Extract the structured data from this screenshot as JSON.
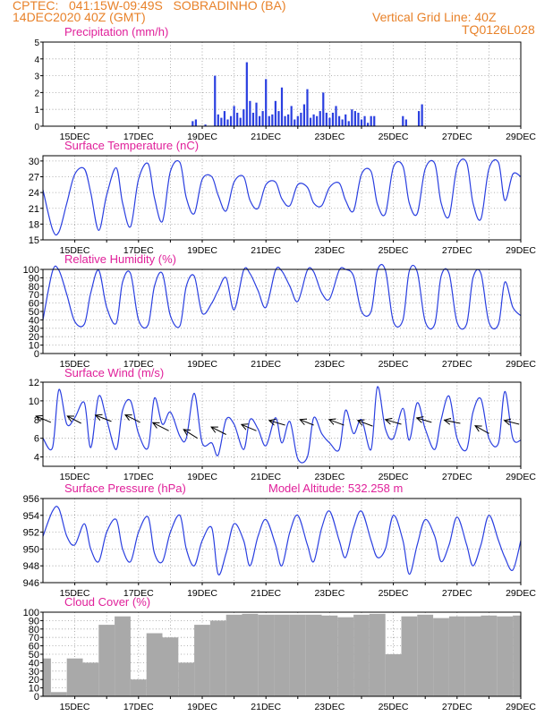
{
  "header": {
    "line1": "CPTEC:   041:15W-09:49S   SOBRADINHO (BA)",
    "line2": "14DEC2020 40Z (GMT)",
    "right1": "Vertical Grid Line: 40Z",
    "right2": "TQ0126L028"
  },
  "colors": {
    "header": "#e8822a",
    "title": "#e0209a",
    "line": "#2a3fe0",
    "bar": "#2a3fe0",
    "cloud": "#a9a9a9",
    "grid": "#9a9a9a"
  },
  "x_axis": {
    "start_day": 14,
    "end_day": 29,
    "tick_labels": [
      "15DEC",
      "17DEC",
      "19DEC",
      "21DEC",
      "23DEC",
      "25DEC",
      "27DEC",
      "29DEC"
    ]
  },
  "model_altitude": "Model Altitude: 532.258  m",
  "chart_data": [
    {
      "type": "bar",
      "title": "Precipitation (mm/h)",
      "ylim": [
        0,
        5
      ],
      "yticks": [
        "0",
        "1",
        "2",
        "3",
        "4",
        "5"
      ],
      "x": [
        18.7,
        18.8,
        19.1,
        19.4,
        19.5,
        19.6,
        19.7,
        19.8,
        19.9,
        20.0,
        20.1,
        20.2,
        20.3,
        20.4,
        20.5,
        20.6,
        20.7,
        20.8,
        20.9,
        21.0,
        21.1,
        21.2,
        21.3,
        21.4,
        21.5,
        21.6,
        21.7,
        21.8,
        21.9,
        22.0,
        22.1,
        22.2,
        22.3,
        22.4,
        22.5,
        22.6,
        22.7,
        22.8,
        22.9,
        23.0,
        23.1,
        23.2,
        23.3,
        23.4,
        23.5,
        23.6,
        23.7,
        23.8,
        23.9,
        24.0,
        24.1,
        24.2,
        24.3,
        24.4,
        25.3,
        25.4,
        25.8,
        25.9
      ],
      "values": [
        0.3,
        0.4,
        0.1,
        3.0,
        0.7,
        0.5,
        0.9,
        0.4,
        0.6,
        1.2,
        0.8,
        0.5,
        1.0,
        3.8,
        1.5,
        0.8,
        1.4,
        0.6,
        0.9,
        2.8,
        0.6,
        0.7,
        1.5,
        0.9,
        2.3,
        0.6,
        0.7,
        1.2,
        0.4,
        0.6,
        0.8,
        1.3,
        2.2,
        0.5,
        0.7,
        0.6,
        0.9,
        2.0,
        0.8,
        0.5,
        0.8,
        1.2,
        0.6,
        0.4,
        0.7,
        0.3,
        1.0,
        0.9,
        0.8,
        0.4,
        0.6,
        0.2,
        0.6,
        0.6,
        0.6,
        0.4,
        0.9,
        1.3
      ]
    },
    {
      "type": "line",
      "title": "Surface Temperature (nC)",
      "ylim": [
        15,
        31
      ],
      "yticks": [
        "15",
        "18",
        "21",
        "24",
        "27",
        "30"
      ],
      "x": [
        14.0,
        14.3,
        14.5,
        14.75,
        15.0,
        15.3,
        15.5,
        15.75,
        16.0,
        16.3,
        16.5,
        16.75,
        17.0,
        17.3,
        17.5,
        17.75,
        18.0,
        18.3,
        18.5,
        18.75,
        19.0,
        19.3,
        19.5,
        19.75,
        20.0,
        20.3,
        20.5,
        20.75,
        21.0,
        21.3,
        21.5,
        21.75,
        22.0,
        22.3,
        22.5,
        22.75,
        23.0,
        23.3,
        23.5,
        23.75,
        24.0,
        24.3,
        24.5,
        24.75,
        25.0,
        25.3,
        25.5,
        25.75,
        26.0,
        26.3,
        26.5,
        26.75,
        27.0,
        27.3,
        27.5,
        27.75,
        28.0,
        28.3,
        28.5,
        28.75,
        29.0
      ],
      "values": [
        24.5,
        17.0,
        16.5,
        22.0,
        27.5,
        28.5,
        24.0,
        16.8,
        23.5,
        28.7,
        22.0,
        17.5,
        26.5,
        29.5,
        23.0,
        18.5,
        28.0,
        29.7,
        23.0,
        20.0,
        26.5,
        27.0,
        23.5,
        20.5,
        26.0,
        27.0,
        22.5,
        21.0,
        25.5,
        26.0,
        22.8,
        21.5,
        25.5,
        25.0,
        22.0,
        21.5,
        25.0,
        25.8,
        22.5,
        20.5,
        27.5,
        28.0,
        21.8,
        20.0,
        28.8,
        29.0,
        22.0,
        20.0,
        28.5,
        29.5,
        22.0,
        19.5,
        28.8,
        29.7,
        22.0,
        19.0,
        28.5,
        29.7,
        22.5,
        27.5,
        27.0
      ]
    },
    {
      "type": "line",
      "title": "Relative Humidity (%)",
      "ylim": [
        0,
        100
      ],
      "yticks": [
        "0",
        "10",
        "20",
        "30",
        "40",
        "50",
        "60",
        "70",
        "80",
        "90",
        "100"
      ],
      "x": [
        14.0,
        14.3,
        14.5,
        14.75,
        15.0,
        15.3,
        15.5,
        15.75,
        16.0,
        16.3,
        16.5,
        16.75,
        17.0,
        17.3,
        17.5,
        17.75,
        18.0,
        18.3,
        18.5,
        18.75,
        19.0,
        19.3,
        19.5,
        19.75,
        20.0,
        20.3,
        20.5,
        20.75,
        21.0,
        21.3,
        21.5,
        21.75,
        22.0,
        22.3,
        22.5,
        22.75,
        23.0,
        23.3,
        23.5,
        23.75,
        24.0,
        24.3,
        24.5,
        24.75,
        25.0,
        25.3,
        25.5,
        25.75,
        26.0,
        26.3,
        26.5,
        26.75,
        27.0,
        27.3,
        27.5,
        27.75,
        28.0,
        28.3,
        28.5,
        28.75,
        29.0
      ],
      "values": [
        40,
        98,
        99,
        70,
        38,
        35,
        72,
        99,
        55,
        36,
        85,
        95,
        40,
        34,
        80,
        95,
        45,
        33,
        80,
        92,
        48,
        60,
        75,
        90,
        52,
        99,
        95,
        75,
        55,
        99,
        98,
        80,
        62,
        99,
        97,
        72,
        65,
        99,
        100,
        92,
        50,
        50,
        99,
        99,
        38,
        40,
        98,
        97,
        38,
        35,
        92,
        95,
        37,
        35,
        90,
        95,
        37,
        35,
        85,
        55,
        45
      ]
    },
    {
      "type": "line",
      "title": "Surface Wind (m/s)",
      "ylim": [
        3,
        12
      ],
      "yticks": [
        "4",
        "6",
        "8",
        "10",
        "12"
      ],
      "x": [
        14.0,
        14.3,
        14.5,
        14.75,
        15.0,
        15.3,
        15.5,
        15.75,
        16.0,
        16.3,
        16.5,
        16.75,
        17.0,
        17.3,
        17.5,
        17.75,
        18.0,
        18.3,
        18.5,
        18.75,
        19.0,
        19.3,
        19.5,
        19.75,
        20.0,
        20.3,
        20.5,
        20.75,
        21.0,
        21.3,
        21.5,
        21.75,
        22.0,
        22.3,
        22.5,
        22.75,
        23.0,
        23.3,
        23.5,
        23.75,
        24.0,
        24.3,
        24.5,
        24.75,
        25.0,
        25.3,
        25.5,
        25.75,
        26.0,
        26.3,
        26.5,
        26.75,
        27.0,
        27.3,
        27.5,
        27.75,
        28.0,
        28.3,
        28.5,
        28.75,
        29.0
      ],
      "values": [
        6.0,
        5.0,
        11.2,
        7.5,
        8.2,
        9.8,
        5.0,
        10.5,
        8.0,
        4.8,
        9.0,
        10.0,
        6.5,
        5.0,
        10.3,
        7.5,
        8.8,
        6.2,
        6.0,
        10.8,
        5.5,
        5.5,
        4.2,
        8.0,
        7.5,
        4.8,
        8.0,
        7.0,
        5.2,
        8.2,
        5.5,
        7.8,
        3.8,
        4.0,
        8.2,
        6.5,
        5.5,
        4.8,
        9.0,
        6.5,
        8.0,
        4.8,
        11.5,
        7.0,
        6.0,
        9.2,
        5.8,
        9.8,
        7.0,
        4.8,
        8.0,
        10.5,
        6.0,
        4.8,
        8.8,
        10.2,
        6.0,
        5.5,
        11.0,
        6.0,
        5.8
      ],
      "vector_x": [
        14.25,
        15.2,
        16.15,
        17.05,
        17.95,
        18.85,
        19.75,
        20.7,
        21.6,
        22.5,
        23.45,
        24.35,
        25.25,
        26.2,
        27.1,
        28.0,
        28.95
      ],
      "vector_y": [
        7.7,
        7.6,
        7.8,
        7.7,
        6.8,
        6.0,
        6.4,
        6.8,
        7.4,
        7.4,
        7.4,
        7.3,
        7.5,
        7.7,
        7.6,
        6.5,
        7.5
      ],
      "vector_dx": [
        -14,
        -13,
        -15,
        -14,
        -15,
        -13,
        -14,
        -14,
        -15,
        -13,
        -14,
        -14,
        -15,
        -14,
        -15,
        -13,
        -14
      ],
      "vector_dy": [
        2.0,
        2.3,
        2.0,
        2.4,
        2.6,
        2.8,
        2.4,
        2.0,
        1.5,
        1.8,
        1.8,
        1.8,
        1.5,
        1.4,
        1.0,
        2.5,
        1.2
      ]
    },
    {
      "type": "line",
      "title": "Surface Pressure (hPa)",
      "ylim": [
        946,
        956
      ],
      "yticks": [
        "946",
        "948",
        "950",
        "952",
        "954",
        "956"
      ],
      "x": [
        14.0,
        14.3,
        14.5,
        14.75,
        15.0,
        15.3,
        15.5,
        15.75,
        16.0,
        16.3,
        16.5,
        16.75,
        17.0,
        17.3,
        17.5,
        17.75,
        18.0,
        18.3,
        18.5,
        18.75,
        19.0,
        19.3,
        19.5,
        19.75,
        20.0,
        20.3,
        20.5,
        20.75,
        21.0,
        21.3,
        21.5,
        21.75,
        22.0,
        22.3,
        22.5,
        22.75,
        23.0,
        23.3,
        23.5,
        23.75,
        24.0,
        24.3,
        24.5,
        24.75,
        25.0,
        25.3,
        25.5,
        25.75,
        26.0,
        26.3,
        26.5,
        26.75,
        27.0,
        27.3,
        27.5,
        27.75,
        28.0,
        28.3,
        28.5,
        28.75,
        29.0
      ],
      "values": [
        951.5,
        954.5,
        954.8,
        951.5,
        950.5,
        953.0,
        950.0,
        948.5,
        952.0,
        953.5,
        950.0,
        948.5,
        952.0,
        953.8,
        949.5,
        948.5,
        952.0,
        954.0,
        950.0,
        948.0,
        951.0,
        952.5,
        947.0,
        949.5,
        953.0,
        951.0,
        948.0,
        951.5,
        953.5,
        950.5,
        948.0,
        952.0,
        954.0,
        950.5,
        948.5,
        952.5,
        954.5,
        951.0,
        949.0,
        952.5,
        954.5,
        951.0,
        949.0,
        950.0,
        954.0,
        951.0,
        947.0,
        950.5,
        953.5,
        951.5,
        948.5,
        950.5,
        953.8,
        950.5,
        948.0,
        950.5,
        954.0,
        951.0,
        949.0,
        947.5,
        951.0
      ]
    },
    {
      "type": "bar",
      "title": "Cloud Cover (%)",
      "ylim": [
        0,
        100
      ],
      "yticks": [
        "0",
        "10",
        "20",
        "30",
        "40",
        "50",
        "60",
        "70",
        "80",
        "90",
        "100"
      ],
      "x": [
        14.0,
        14.5,
        15.0,
        15.5,
        16.0,
        16.5,
        17.0,
        17.5,
        18.0,
        18.5,
        19.0,
        19.5,
        20.0,
        20.5,
        21.0,
        21.5,
        22.0,
        22.5,
        23.0,
        23.5,
        24.0,
        24.5,
        25.0,
        25.5,
        26.0,
        26.5,
        27.0,
        27.5,
        28.0,
        28.5,
        29.0
      ],
      "values": [
        45,
        5,
        45,
        40,
        85,
        95,
        20,
        75,
        70,
        40,
        85,
        90,
        97,
        98,
        97,
        97,
        97,
        97,
        96,
        94,
        97,
        98,
        50,
        95,
        97,
        93,
        95,
        95,
        96,
        95,
        96
      ]
    }
  ]
}
